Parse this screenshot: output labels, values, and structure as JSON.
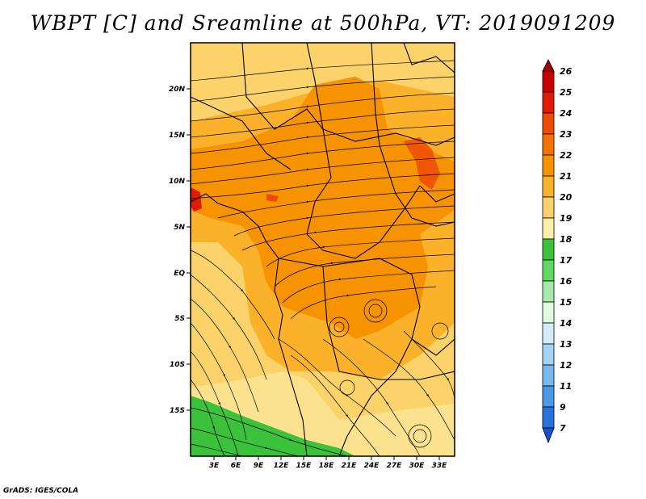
{
  "title": "WBPT [C] and Sreamline at 500hPa, VT: 2019091209",
  "credit": "GrADS: IGES/COLA",
  "map": {
    "variable": "WBPT [C]",
    "overlay": "Streamline",
    "level": "500hPa",
    "valid_time": "2019091209",
    "lat_labels": [
      "20N",
      "15N",
      "10N",
      "5N",
      "EQ",
      "5S",
      "10S",
      "15S"
    ],
    "lon_labels": [
      "3E",
      "6E",
      "9E",
      "12E",
      "15E",
      "18E",
      "21E",
      "24E",
      "27E",
      "30E",
      "33E"
    ]
  },
  "colorbar": {
    "labels": [
      "26",
      "25",
      "24",
      "23",
      "22",
      "21",
      "20",
      "19",
      "18",
      "17",
      "16",
      "15",
      "14",
      "13",
      "12",
      "11",
      "9",
      "7"
    ],
    "colors": [
      "#a50000",
      "#c80000",
      "#e11b00",
      "#ef4b00",
      "#f37200",
      "#f79300",
      "#fbb22a",
      "#fbd36a",
      "#fdeeab",
      "#3cc13c",
      "#63d663",
      "#a8e8a8",
      "#e1fbe1",
      "#d2ecfb",
      "#a5d3f6",
      "#78b9f0",
      "#4b9ae6",
      "#2a72e0",
      "#1451d7"
    ]
  },
  "legend_fields": {
    "top_color": "#a50000",
    "bottom_color": "#1451d7",
    "bg_base": "#fbd36a",
    "bg_orange": "#f79300",
    "bg_light": "#fbb22a",
    "bg_pale": "#fdeeab",
    "bg_green": "#3cc13c",
    "bg_red": "#e11b00"
  }
}
